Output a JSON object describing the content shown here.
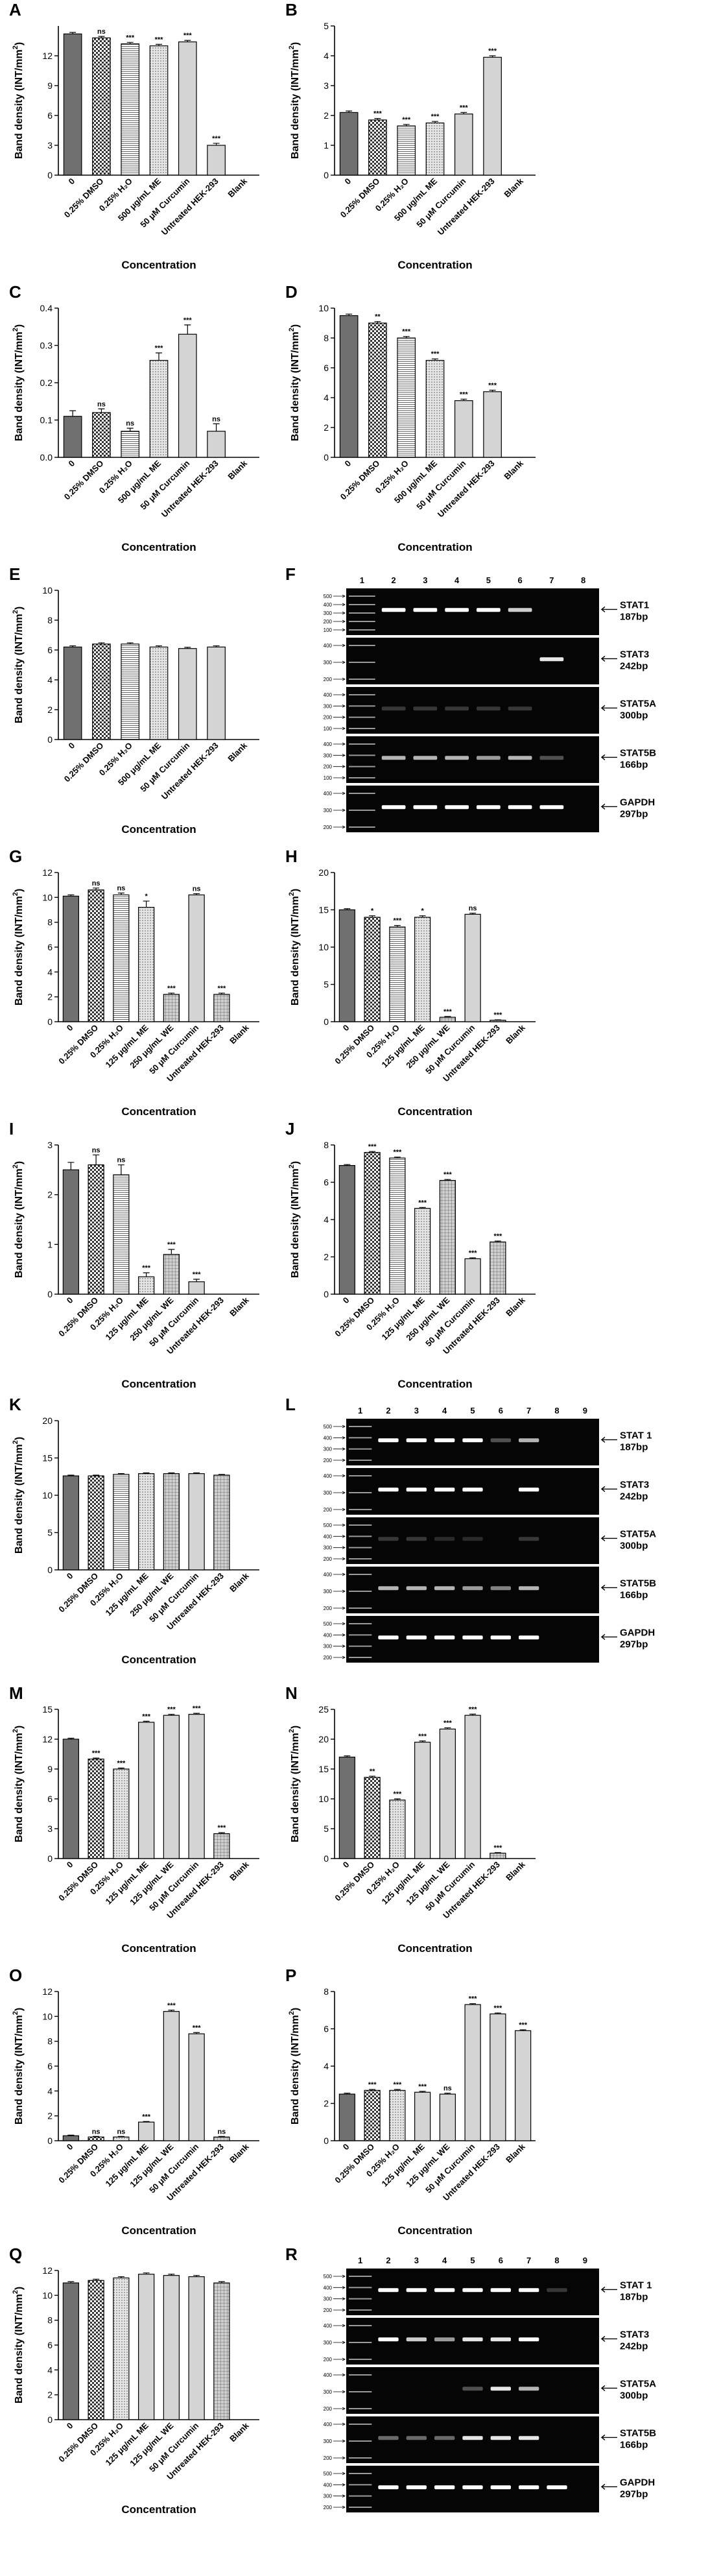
{
  "common": {
    "ylabel": "Band density (INT/mm",
    "ylabel_sup": "2",
    "ylabel_close": ")",
    "xlabel": "Concentration"
  },
  "fills": {
    "dark": "#707070",
    "light": "#d4d4d4",
    "white": "#ffffff"
  },
  "chart_data": [
    {
      "id": "A",
      "type": "bar",
      "ylim": [
        0,
        15
      ],
      "ticks": [
        0,
        3,
        6,
        9,
        12
      ],
      "categories": [
        "0",
        "0.25% DMSO",
        "0.25% H₂O",
        "500 μg/mL ME",
        "50 μM Curcumin",
        "Untreated HEK-293",
        "Blank"
      ],
      "values": [
        14.2,
        13.8,
        13.2,
        13.0,
        13.4,
        3.0,
        0
      ],
      "errors": [
        0.15,
        0.15,
        0.15,
        0.15,
        0.15,
        0.2,
        0
      ],
      "sig": [
        "",
        "ns",
        "***",
        "***",
        "***",
        "***",
        ""
      ],
      "patterns": [
        "dark",
        "check",
        "hlines",
        "dots",
        "light",
        "light",
        "none"
      ]
    },
    {
      "id": "B",
      "type": "bar",
      "ylim": [
        0,
        5
      ],
      "ticks": [
        0,
        1,
        2,
        3,
        4,
        5
      ],
      "categories": [
        "0",
        "0.25% DMSO",
        "0.25% H₂O",
        "500 μg/mL ME",
        "50 μM Curcumin",
        "Untreated HEK-293",
        "Blank"
      ],
      "values": [
        2.1,
        1.85,
        1.65,
        1.75,
        2.05,
        3.95,
        0
      ],
      "errors": [
        0.05,
        0.05,
        0.05,
        0.05,
        0.05,
        0.05,
        0
      ],
      "sig": [
        "",
        "***",
        "***",
        "***",
        "***",
        "***",
        ""
      ],
      "patterns": [
        "dark",
        "check",
        "hlines",
        "dots",
        "light",
        "light",
        "none"
      ]
    },
    {
      "id": "C",
      "type": "bar",
      "ylim": [
        0,
        0.4
      ],
      "ticks": [
        0.0,
        0.1,
        0.2,
        0.3,
        0.4
      ],
      "categories": [
        "0",
        "0.25% DMSO",
        "0.25% H₂O",
        "500 μg/mL ME",
        "50 μM Curcumin",
        "Untreated HEK-293",
        "Blank"
      ],
      "values": [
        0.11,
        0.12,
        0.07,
        0.26,
        0.33,
        0.07,
        0
      ],
      "errors": [
        0.015,
        0.01,
        0.008,
        0.02,
        0.025,
        0.02,
        0
      ],
      "sig": [
        "",
        "ns",
        "ns",
        "***",
        "***",
        "ns",
        ""
      ],
      "patterns": [
        "dark",
        "check",
        "hlines",
        "dots",
        "light",
        "light",
        "none"
      ]
    },
    {
      "id": "D",
      "type": "bar",
      "ylim": [
        0,
        10
      ],
      "ticks": [
        0,
        2,
        4,
        6,
        8,
        10
      ],
      "categories": [
        "0",
        "0.25% DMSO",
        "0.25% H₂O",
        "500 μg/mL ME",
        "50 μM Curcumin",
        "Untreated HEK-293",
        "Blank"
      ],
      "values": [
        9.5,
        9.0,
        8.0,
        6.5,
        3.8,
        4.4,
        0
      ],
      "errors": [
        0.1,
        0.1,
        0.1,
        0.1,
        0.1,
        0.1,
        0
      ],
      "sig": [
        "",
        "**",
        "***",
        "***",
        "***",
        "***",
        ""
      ],
      "patterns": [
        "dark",
        "check",
        "hlines",
        "dots",
        "light",
        "light",
        "none"
      ]
    },
    {
      "id": "E",
      "type": "bar",
      "ylim": [
        0,
        10
      ],
      "ticks": [
        0,
        2,
        4,
        6,
        8,
        10
      ],
      "categories": [
        "0",
        "0.25% DMSO",
        "0.25% H₂O",
        "500 μg/mL ME",
        "50 μM Curcumin",
        "Untreated HEK-293",
        "Blank"
      ],
      "values": [
        6.2,
        6.4,
        6.4,
        6.2,
        6.1,
        6.2,
        0
      ],
      "errors": [
        0.08,
        0.08,
        0.08,
        0.08,
        0.08,
        0.08,
        0
      ],
      "sig": [
        "",
        "",
        "",
        "",
        "",
        "",
        ""
      ],
      "patterns": [
        "dark",
        "check",
        "hlines",
        "dots",
        "light",
        "light",
        "none"
      ]
    },
    {
      "id": "G",
      "type": "bar",
      "ylim": [
        0,
        12
      ],
      "ticks": [
        0,
        2,
        4,
        6,
        8,
        10,
        12
      ],
      "categories": [
        "0",
        "0.25% DMSO",
        "0.25% H₂O",
        "125 μg/mL ME",
        "250 μg/mL WE",
        "50 μM Curcumin",
        "Untreated HEK-293",
        "Blank"
      ],
      "values": [
        10.1,
        10.6,
        10.2,
        9.2,
        2.2,
        10.2,
        2.2,
        0
      ],
      "errors": [
        0.1,
        0.15,
        0.15,
        0.5,
        0.1,
        0.1,
        0.1,
        0
      ],
      "sig": [
        "",
        "ns",
        "ns",
        "*",
        "***",
        "ns",
        "***",
        ""
      ],
      "patterns": [
        "dark",
        "check",
        "hlines",
        "dots",
        "grid",
        "light",
        "grid",
        "none"
      ]
    },
    {
      "id": "H",
      "type": "bar",
      "ylim": [
        0,
        20
      ],
      "ticks": [
        0,
        5,
        10,
        15,
        20
      ],
      "categories": [
        "0",
        "0.25% DMSO",
        "0.25% H₂O",
        "125 μg/mL ME",
        "250 μg/mL WE",
        "50 μM Curcumin",
        "Untreated HEK-293",
        "Blank"
      ],
      "values": [
        15.0,
        14.0,
        12.7,
        14.0,
        0.6,
        14.4,
        0.2,
        0
      ],
      "errors": [
        0.15,
        0.2,
        0.2,
        0.2,
        0.1,
        0.15,
        0.05,
        0
      ],
      "sig": [
        "",
        "*",
        "***",
        "*",
        "***",
        "ns",
        "***",
        ""
      ],
      "patterns": [
        "dark",
        "check",
        "hlines",
        "dots",
        "grid",
        "light",
        "grid",
        "none"
      ]
    },
    {
      "id": "I",
      "type": "bar",
      "ylim": [
        0,
        3
      ],
      "ticks": [
        0,
        1,
        2,
        3
      ],
      "categories": [
        "0",
        "0.25% DMSO",
        "0.25% H₂O",
        "125 μg/mL ME",
        "250 μg/mL WE",
        "50 μM Curcumin",
        "Untreated HEK-293",
        "Blank"
      ],
      "values": [
        2.5,
        2.6,
        2.4,
        0.35,
        0.8,
        0.25,
        0,
        0
      ],
      "errors": [
        0.15,
        0.2,
        0.2,
        0.08,
        0.1,
        0.05,
        0,
        0
      ],
      "sig": [
        "",
        "ns",
        "ns",
        "***",
        "***",
        "***",
        "",
        ""
      ],
      "patterns": [
        "dark",
        "check",
        "hlines",
        "dots",
        "grid",
        "light",
        "grid",
        "none"
      ]
    },
    {
      "id": "J",
      "type": "bar",
      "ylim": [
        0,
        8
      ],
      "ticks": [
        0,
        2,
        4,
        6,
        8
      ],
      "categories": [
        "0",
        "0.25% DMSO",
        "0.25% H₂O",
        "125 μg/mL ME",
        "250 μg/mL WE",
        "50 μM Curcumin",
        "Untreated HEK-293",
        "Blank"
      ],
      "values": [
        6.9,
        7.6,
        7.3,
        4.6,
        6.1,
        1.9,
        2.8,
        0
      ],
      "errors": [
        0.05,
        0.05,
        0.05,
        0.05,
        0.05,
        0.05,
        0.05,
        0
      ],
      "sig": [
        "",
        "***",
        "***",
        "***",
        "***",
        "***",
        "***",
        ""
      ],
      "patterns": [
        "dark",
        "check",
        "hlines",
        "dots",
        "grid",
        "light",
        "grid",
        "none"
      ]
    },
    {
      "id": "K",
      "type": "bar",
      "ylim": [
        0,
        20
      ],
      "ticks": [
        0,
        5,
        10,
        15,
        20
      ],
      "categories": [
        "0",
        "0.25% DMSO",
        "0.25% H₂O",
        "125 μg/mL ME",
        "250 μg/mL WE",
        "50 μM Curcumin",
        "Untreated HEK-293",
        "Blank"
      ],
      "values": [
        12.6,
        12.6,
        12.8,
        12.9,
        12.9,
        12.9,
        12.7,
        0
      ],
      "errors": [
        0.1,
        0.1,
        0.1,
        0.1,
        0.1,
        0.1,
        0.1,
        0
      ],
      "sig": [
        "",
        "",
        "",
        "",
        "",
        "",
        "",
        ""
      ],
      "patterns": [
        "dark",
        "check",
        "hlines",
        "dots",
        "grid",
        "light",
        "grid",
        "none"
      ]
    },
    {
      "id": "M",
      "type": "bar",
      "ylim": [
        0,
        15
      ],
      "ticks": [
        0,
        3,
        6,
        9,
        12,
        15
      ],
      "categories": [
        "0",
        "0.25% DMSO",
        "0.25% H₂O",
        "125 μg/mL ME",
        "125 μg/mL WE",
        "50 μM Curcumin",
        "Untreated HEK-293",
        "Blank"
      ],
      "values": [
        12.0,
        10.0,
        9.0,
        13.7,
        14.4,
        14.5,
        2.5,
        0
      ],
      "errors": [
        0.1,
        0.1,
        0.1,
        0.1,
        0.1,
        0.1,
        0.1,
        0
      ],
      "sig": [
        "",
        "***",
        "***",
        "***",
        "***",
        "***",
        "***",
        ""
      ],
      "patterns": [
        "dark",
        "check",
        "dots",
        "light",
        "light",
        "light",
        "grid",
        "none"
      ]
    },
    {
      "id": "N",
      "type": "bar",
      "ylim": [
        0,
        25
      ],
      "ticks": [
        0,
        5,
        10,
        15,
        20,
        25
      ],
      "categories": [
        "0",
        "0.25% DMSO",
        "0.25% H₂O",
        "125 μg/mL ME",
        "125 μg/mL WE",
        "50 μM Curcumin",
        "Untreated HEK-293",
        "Blank"
      ],
      "values": [
        17.0,
        13.6,
        9.8,
        19.5,
        21.7,
        24.0,
        0.9,
        0
      ],
      "errors": [
        0.2,
        0.2,
        0.2,
        0.2,
        0.2,
        0.2,
        0.1,
        0
      ],
      "sig": [
        "",
        "**",
        "***",
        "***",
        "***",
        "***",
        "***",
        ""
      ],
      "patterns": [
        "dark",
        "check",
        "dots",
        "light",
        "light",
        "light",
        "grid",
        "none"
      ]
    },
    {
      "id": "O",
      "type": "bar",
      "ylim": [
        0,
        12
      ],
      "ticks": [
        0,
        2,
        4,
        6,
        8,
        10,
        12
      ],
      "categories": [
        "0",
        "0.25% DMSO",
        "0.25% H₂O",
        "125 μg/mL ME",
        "125 μg/mL WE",
        "50 μM Curcumin",
        "Untreated HEK-293",
        "Blank"
      ],
      "values": [
        0.4,
        0.3,
        0.3,
        1.5,
        10.4,
        8.6,
        0.3,
        0
      ],
      "errors": [
        0.05,
        0.05,
        0.05,
        0.05,
        0.1,
        0.1,
        0.05,
        0
      ],
      "sig": [
        "",
        "ns",
        "ns",
        "***",
        "***",
        "***",
        "ns",
        ""
      ],
      "patterns": [
        "dark",
        "check",
        "dots",
        "light",
        "light",
        "light",
        "grid",
        "none"
      ]
    },
    {
      "id": "P",
      "type": "bar",
      "ylim": [
        0,
        8
      ],
      "ticks": [
        0,
        2,
        4,
        6,
        8
      ],
      "categories": [
        "0",
        "0.25% DMSO",
        "0.25% H₂O",
        "125 μg/mL ME",
        "125 μg/mL WE",
        "50 μM Curcumin",
        "Untreated HEK-293",
        "Blank"
      ],
      "values": [
        2.5,
        2.7,
        2.7,
        2.6,
        2.5,
        7.3,
        6.8,
        5.9
      ],
      "errors": [
        0.05,
        0.05,
        0.05,
        0.05,
        0.05,
        0.05,
        0.05,
        0.05
      ],
      "sig": [
        "",
        "***",
        "***",
        "***",
        "ns",
        "***",
        "***",
        "***"
      ],
      "patterns": [
        "dark",
        "check",
        "dots",
        "light",
        "light",
        "light",
        "light",
        "light"
      ]
    },
    {
      "id": "Q",
      "type": "bar",
      "ylim": [
        0,
        12
      ],
      "ticks": [
        0,
        2,
        4,
        6,
        8,
        10,
        12
      ],
      "categories": [
        "0",
        "0.25% DMSO",
        "0.25% H₂O",
        "125 μg/mL ME",
        "125 μg/mL WE",
        "50 μM Curcumin",
        "Untreated HEK-293",
        "Blank"
      ],
      "values": [
        11.0,
        11.2,
        11.4,
        11.7,
        11.6,
        11.5,
        11.0,
        0
      ],
      "errors": [
        0.1,
        0.1,
        0.1,
        0.1,
        0.1,
        0.1,
        0.1,
        0
      ],
      "sig": [
        "",
        "",
        "",
        "",
        "",
        "",
        "",
        ""
      ],
      "patterns": [
        "dark",
        "check",
        "dots",
        "light",
        "light",
        "light",
        "grid",
        "none"
      ]
    }
  ],
  "gels": [
    {
      "id": "F",
      "lanes": [
        "1",
        "2",
        "3",
        "4",
        "5",
        "6",
        "7",
        "8"
      ],
      "ladder_ticks": [
        [
          "500",
          "400",
          "300",
          "200",
          "100"
        ],
        [
          "400",
          "300",
          "200"
        ],
        [
          "400",
          "300",
          "200",
          "100"
        ],
        [
          "400",
          "300",
          "200",
          "100"
        ],
        [
          "400",
          "300",
          "200"
        ]
      ],
      "strips": [
        {
          "name": "STAT1",
          "size": "187bp",
          "bands": [
            0,
            1,
            1,
            1,
            1,
            0.8,
            0,
            0
          ]
        },
        {
          "name": "STAT3",
          "size": "242bp",
          "bands": [
            0,
            0,
            0,
            0,
            0,
            0,
            0.9,
            0
          ]
        },
        {
          "name": "STAT5A",
          "size": "300bp",
          "bands": [
            0,
            0.2,
            0.2,
            0.2,
            0.2,
            0.2,
            0,
            0
          ]
        },
        {
          "name": "STAT5B",
          "size": "166bp",
          "bands": [
            0,
            0.7,
            0.7,
            0.7,
            0.6,
            0.7,
            0.3,
            0
          ]
        },
        {
          "name": "GAPDH",
          "size": "297bp",
          "bands": [
            0,
            1,
            1,
            1,
            1,
            1,
            1,
            0
          ]
        }
      ]
    },
    {
      "id": "L",
      "lanes": [
        "1",
        "2",
        "3",
        "4",
        "5",
        "6",
        "7",
        "8",
        "9"
      ],
      "ladder_ticks": [
        [
          "500",
          "400",
          "300",
          "200"
        ],
        [
          "400",
          "300",
          "200"
        ],
        [
          "500",
          "400",
          "300",
          "200"
        ],
        [
          "400",
          "300",
          "200"
        ],
        [
          "500",
          "400",
          "300",
          "200"
        ]
      ],
      "strips": [
        {
          "name": "STAT 1",
          "size": "187bp",
          "bands": [
            0,
            1,
            1,
            1,
            1,
            0.3,
            0.7,
            0,
            0
          ]
        },
        {
          "name": "STAT3",
          "size": "242bp",
          "bands": [
            0,
            1,
            1,
            1,
            1,
            0,
            1,
            0,
            0
          ]
        },
        {
          "name": "STAT5A",
          "size": "300bp",
          "bands": [
            0,
            0.2,
            0.2,
            0.15,
            0.15,
            0,
            0.2,
            0,
            0
          ]
        },
        {
          "name": "STAT5B",
          "size": "166bp",
          "bands": [
            0,
            0.7,
            0.7,
            0.7,
            0.6,
            0.5,
            0.7,
            0,
            0
          ]
        },
        {
          "name": "GAPDH",
          "size": "297bp",
          "bands": [
            0,
            1,
            1,
            1,
            1,
            1,
            1,
            0,
            0
          ]
        }
      ]
    },
    {
      "id": "R",
      "lanes": [
        "1",
        "2",
        "3",
        "4",
        "5",
        "6",
        "7",
        "8",
        "9"
      ],
      "ladder_ticks": [
        [
          "500",
          "400",
          "300",
          "200"
        ],
        [
          "400",
          "300",
          "200"
        ],
        [
          "400",
          "300",
          "200"
        ],
        [
          "400",
          "300",
          "200"
        ],
        [
          "500",
          "400",
          "300",
          "200"
        ]
      ],
      "strips": [
        {
          "name": "STAT 1",
          "size": "187bp",
          "bands": [
            0,
            1,
            1,
            1,
            1,
            1,
            1,
            0.2,
            0
          ]
        },
        {
          "name": "STAT3",
          "size": "242bp",
          "bands": [
            0,
            1,
            0.8,
            0.6,
            0.9,
            0.9,
            1,
            0,
            0
          ]
        },
        {
          "name": "STAT5A",
          "size": "300bp",
          "bands": [
            0,
            0,
            0,
            0,
            0.3,
            0.9,
            0.7,
            0,
            0
          ]
        },
        {
          "name": "STAT5B",
          "size": "166bp",
          "bands": [
            0,
            0.4,
            0.4,
            0.4,
            0.9,
            0.9,
            0.9,
            0,
            0
          ]
        },
        {
          "name": "GAPDH",
          "size": "297bp",
          "bands": [
            0,
            1,
            1,
            1,
            1,
            1,
            1,
            1,
            0
          ]
        }
      ]
    }
  ]
}
